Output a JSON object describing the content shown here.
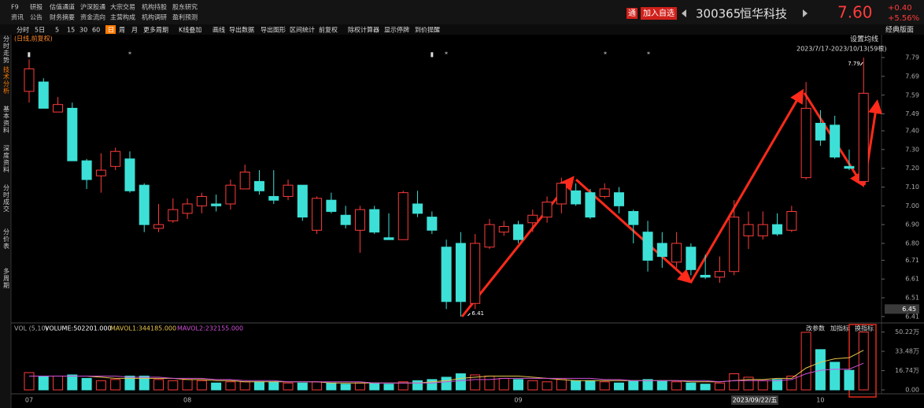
{
  "header": {
    "menu_row1": [
      "F9",
      "研报",
      "估值通道",
      "沪深股通",
      "大宗交易",
      "机构持股",
      "股东研究"
    ],
    "menu_row2": [
      "资讯",
      "公告",
      "财务摘要",
      "资金流向",
      "主营构成",
      "机构调研",
      "盈利预测"
    ],
    "badge": "通",
    "add_watch": "加入自选",
    "code": "300365",
    "name": "恒华科技",
    "price": "7.60",
    "change": "+0.40",
    "change_pct": "+5.56%"
  },
  "toolbar": [
    "分时",
    "5日",
    "5",
    "15",
    "30",
    "60",
    "日",
    "周",
    "月",
    "更多周期",
    "K线叠加",
    "画线",
    "导出数据",
    "导出图形",
    "区间统计",
    "前复权",
    "除权计算器",
    "显示停牌",
    "到价提醒"
  ],
  "layout_button": "经典版面",
  "sidebar": [
    "分时走势",
    "技术分析",
    "基本资料",
    "深度资料",
    "分时成交",
    "分价表",
    "多周期"
  ],
  "chart_data": [
    {
      "type": "candlestick",
      "subtitle": "(日线,前复权)",
      "ma_setting": "设置均线",
      "range_label": "2023/7/17-2023/10/13(59根)",
      "up_color": "#ff3b3b",
      "down_color": "#3de0d6",
      "categories": [
        "07",
        null,
        null,
        null,
        null,
        null,
        null,
        null,
        null,
        null,
        null,
        "08",
        null,
        null,
        null,
        null,
        null,
        null,
        null,
        null,
        null,
        null,
        null,
        null,
        null,
        null,
        null,
        null,
        null,
        null,
        null,
        null,
        null,
        null,
        "09",
        null,
        null,
        null,
        null,
        null,
        null,
        null,
        null,
        null,
        null,
        null,
        null,
        null,
        null,
        null,
        null,
        null,
        null,
        null,
        null,
        "10",
        null,
        null,
        null
      ],
      "open": [
        7.61,
        7.66,
        7.5,
        7.52,
        7.24,
        7.16,
        7.21,
        7.25,
        7.11,
        6.88,
        6.92,
        6.96,
        7.0,
        7.01,
        7.01,
        7.09,
        7.13,
        7.05,
        7.05,
        7.11,
        6.87,
        7.03,
        6.95,
        6.87,
        6.98,
        6.83,
        6.82,
        7.01,
        6.94,
        6.78,
        6.8,
        6.48,
        6.78,
        6.86,
        6.9,
        6.91,
        6.94,
        7.01,
        7.08,
        7.07,
        7.05,
        7.07,
        6.97,
        6.86,
        6.8,
        6.7,
        6.78,
        6.63,
        6.62,
        6.65,
        6.84,
        6.84,
        6.9,
        6.87,
        7.15,
        7.44,
        7.43,
        7.21,
        7.13
      ],
      "high": [
        7.78,
        7.68,
        7.58,
        7.55,
        7.25,
        7.28,
        7.31,
        7.29,
        7.12,
        7.01,
        7.04,
        7.04,
        7.07,
        7.06,
        7.14,
        7.22,
        7.19,
        7.19,
        7.14,
        7.11,
        7.05,
        7.07,
        7.0,
        7.0,
        7.0,
        6.96,
        7.08,
        7.08,
        6.97,
        6.82,
        6.86,
        6.85,
        6.93,
        6.92,
        6.92,
        6.98,
        7.05,
        7.15,
        7.12,
        7.09,
        7.12,
        7.1,
        6.98,
        6.92,
        6.86,
        6.86,
        6.8,
        6.74,
        6.73,
        7.03,
        6.97,
        6.97,
        6.96,
        7.0,
        7.66,
        7.51,
        7.48,
        7.3,
        7.79
      ],
      "low": [
        7.55,
        7.52,
        7.5,
        7.24,
        7.09,
        7.07,
        7.19,
        7.07,
        6.86,
        6.86,
        6.91,
        6.93,
        6.96,
        6.97,
        6.98,
        7.09,
        7.06,
        7.01,
        7.03,
        6.92,
        6.85,
        6.96,
        6.88,
        6.75,
        6.85,
        6.82,
        6.82,
        6.94,
        6.85,
        6.45,
        6.41,
        6.45,
        6.77,
        6.84,
        6.8,
        6.86,
        6.91,
        6.96,
        7.0,
        6.93,
        7.04,
        6.96,
        6.8,
        6.65,
        6.67,
        6.67,
        6.63,
        6.61,
        6.59,
        6.63,
        6.77,
        6.82,
        6.84,
        6.86,
        7.14,
        7.32,
        7.25,
        7.19,
        7.1
      ],
      "close": [
        7.73,
        7.52,
        7.54,
        7.24,
        7.14,
        7.19,
        7.29,
        7.08,
        6.9,
        6.9,
        6.98,
        7.01,
        7.05,
        7.0,
        7.11,
        7.18,
        7.08,
        7.03,
        7.11,
        6.94,
        7.04,
        6.97,
        6.9,
        6.98,
        6.86,
        6.82,
        7.07,
        6.96,
        6.87,
        6.49,
        6.49,
        6.8,
        6.9,
        6.89,
        6.82,
        6.95,
        7.02,
        7.12,
        7.01,
        6.94,
        7.09,
        7.0,
        6.9,
        6.71,
        6.73,
        6.8,
        6.66,
        6.62,
        6.65,
        6.94,
        6.9,
        6.9,
        6.85,
        6.97,
        7.52,
        7.35,
        7.26,
        7.2,
        7.6
      ],
      "ylim": [
        6.376,
        7.845
      ],
      "yticks": [
        7.79,
        7.69,
        7.59,
        7.49,
        {
          "value": 7.4,
          "label": "7.40"
        },
        {
          "value": 7.3,
          "label": "7.30"
        },
        {
          "value": 7.2,
          "label": "7.20"
        },
        {
          "value": 7.1,
          "label": "7.10"
        },
        {
          "value": 7,
          "label": "7.00"
        },
        {
          "value": 6.9,
          "label": "6.90"
        },
        {
          "value": 6.8,
          "label": "6.80"
        },
        6.71,
        6.61,
        6.51,
        6.41
      ],
      "high_label": 7.79,
      "low_label": 6.41,
      "cursor_price": 6.45,
      "cursor_date": "2023/09/22/五",
      "event_markers": [
        "▮",
        "*",
        "▮",
        "*",
        "*",
        "*"
      ]
    },
    {
      "type": "bar",
      "title": "VOL (5,10)",
      "volume_label": "VOLUME:502201.000",
      "buttons": [
        "改参数",
        "加指标",
        "换指标"
      ],
      "values": [
        15,
        12,
        12,
        13,
        10,
        8,
        9,
        12,
        12,
        9,
        8,
        9,
        8,
        6,
        7,
        7,
        7,
        7,
        6,
        6,
        7,
        6,
        5,
        6,
        6,
        5,
        7,
        8,
        9,
        11,
        14,
        13,
        12,
        10,
        9,
        8,
        7,
        9,
        8,
        8,
        7,
        6,
        8,
        9,
        8,
        7,
        6,
        5,
        6,
        14,
        11,
        8,
        9,
        12,
        50,
        35,
        24,
        17,
        50.22
      ],
      "series": [
        {
          "name": "MAVOL1:344185.000",
          "color": "#e8c44a",
          "values": [
            12,
            12,
            12,
            12,
            12,
            11,
            10,
            10,
            10,
            10,
            10,
            9,
            9,
            8,
            8,
            7,
            7,
            7,
            7,
            7,
            7,
            6,
            6,
            6,
            6,
            6,
            6,
            6,
            7,
            8,
            10,
            11,
            12,
            12,
            12,
            11,
            10,
            9,
            8,
            8,
            8,
            8,
            8,
            8,
            8,
            8,
            7,
            7,
            7,
            8,
            9,
            9,
            10,
            10,
            19,
            24,
            27,
            28,
            34.42
          ]
        },
        {
          "name": "MAVOL2:232155.000",
          "color": "#d050d8",
          "values": [
            12,
            12,
            12,
            12,
            12,
            12,
            12,
            11,
            11,
            11,
            10,
            10,
            10,
            9,
            9,
            8,
            8,
            8,
            7,
            7,
            7,
            7,
            7,
            7,
            6,
            6,
            6,
            6,
            6,
            7,
            8,
            9,
            9,
            10,
            10,
            10,
            10,
            10,
            10,
            10,
            9,
            9,
            8,
            8,
            8,
            8,
            8,
            8,
            7,
            8,
            8,
            8,
            8,
            9,
            14,
            17,
            18,
            18,
            23.22
          ]
        }
      ],
      "ylim": [
        0,
        52
      ],
      "yticks": [
        {
          "value": 0,
          "label": "0.00"
        },
        {
          "value": 16.74,
          "label": "16.74万"
        },
        {
          "value": 33.48,
          "label": "33.48万"
        },
        {
          "value": 50.22,
          "label": "50.22万"
        }
      ]
    }
  ]
}
